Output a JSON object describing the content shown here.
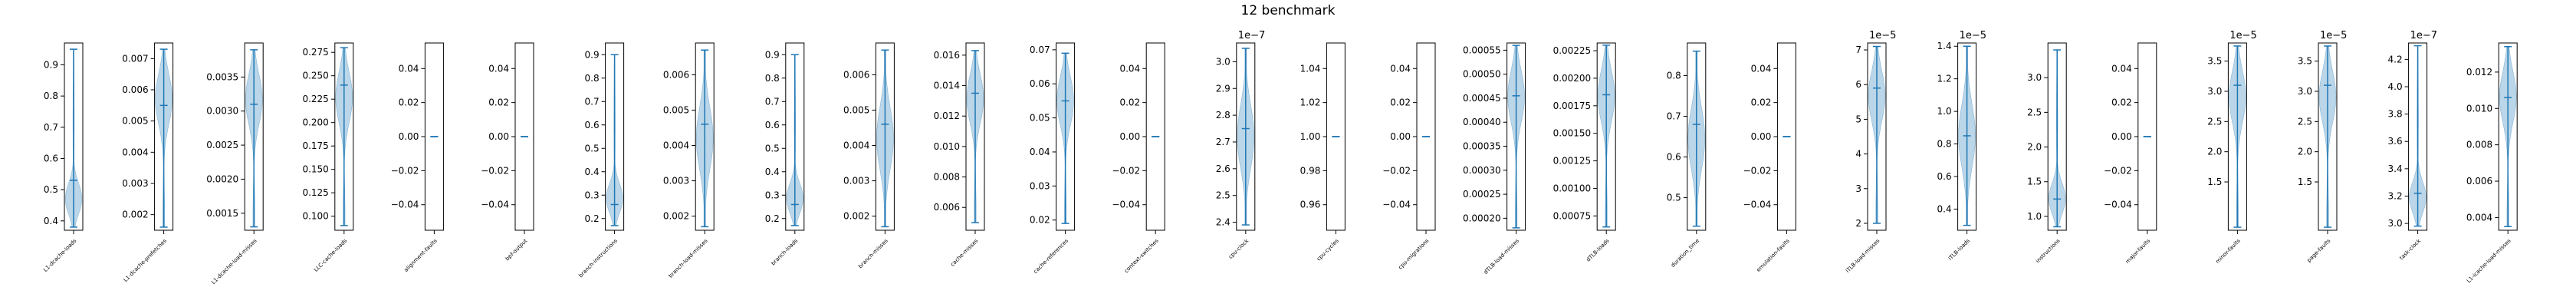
{
  "figure": {
    "title": "12 benchmark"
  },
  "style": {
    "violin_fill": "#1f77b4",
    "line_color": "#1f77b4",
    "frame_color": "#000000"
  },
  "chart_data": [
    {
      "type": "violin",
      "label": "L1-dcache-loads",
      "yticks": [
        "0.4",
        "0.5",
        "0.6",
        "0.7",
        "0.8",
        "0.9"
      ],
      "tick_values": [
        0.4,
        0.5,
        0.6,
        0.7,
        0.8,
        0.9
      ],
      "ylim": [
        0.37,
        0.97
      ],
      "min": 0.38,
      "max": 0.95,
      "median": 0.53,
      "multiplier": "",
      "shape": "bottom"
    },
    {
      "type": "violin",
      "label": "L1-dcache-prefetches",
      "yticks": [
        "0.002",
        "0.003",
        "0.004",
        "0.005",
        "0.006",
        "0.007"
      ],
      "tick_values": [
        0.002,
        0.003,
        0.004,
        0.005,
        0.006,
        0.007
      ],
      "ylim": [
        0.0015,
        0.0075
      ],
      "min": 0.0016,
      "max": 0.0073,
      "median": 0.0055,
      "multiplier": "",
      "shape": "upper"
    },
    {
      "type": "violin",
      "label": "L1-dcache-load-misses",
      "yticks": [
        "0.0015",
        "0.0020",
        "0.0025",
        "0.0030",
        "0.0035"
      ],
      "tick_values": [
        0.0015,
        0.002,
        0.0025,
        0.003,
        0.0035
      ],
      "ylim": [
        0.00125,
        0.004
      ],
      "min": 0.0013,
      "max": 0.0039,
      "median": 0.0031,
      "multiplier": "",
      "shape": "upper"
    },
    {
      "type": "violin",
      "label": "LLC-cache-loads",
      "yticks": [
        "0.100",
        "0.125",
        "0.150",
        "0.175",
        "0.200",
        "0.225",
        "0.250",
        "0.275"
      ],
      "tick_values": [
        0.1,
        0.125,
        0.15,
        0.175,
        0.2,
        0.225,
        0.25,
        0.275
      ],
      "ylim": [
        0.085,
        0.285
      ],
      "min": 0.09,
      "max": 0.28,
      "median": 0.24,
      "multiplier": "",
      "shape": "upper"
    },
    {
      "type": "violin",
      "label": "alignment-faults",
      "yticks": [
        "−0.04",
        "−0.02",
        "0.00",
        "0.02",
        "0.04"
      ],
      "tick_values": [
        -0.04,
        -0.02,
        0,
        0.02,
        0.04
      ],
      "ylim": [
        -0.055,
        0.055
      ],
      "min": 0,
      "max": 0,
      "median": 0,
      "multiplier": "",
      "shape": "flat"
    },
    {
      "type": "violin",
      "label": "bpf-output",
      "yticks": [
        "−0.04",
        "−0.02",
        "0.00",
        "0.02",
        "0.04"
      ],
      "tick_values": [
        -0.04,
        -0.02,
        0,
        0.02,
        0.04
      ],
      "ylim": [
        -0.055,
        0.055
      ],
      "min": 0,
      "max": 0,
      "median": 0,
      "multiplier": "",
      "shape": "flat"
    },
    {
      "type": "violin",
      "label": "branch-instructions",
      "yticks": [
        "0.2",
        "0.3",
        "0.4",
        "0.5",
        "0.6",
        "0.7",
        "0.8",
        "0.9"
      ],
      "tick_values": [
        0.2,
        0.3,
        0.4,
        0.5,
        0.6,
        0.7,
        0.8,
        0.9
      ],
      "ylim": [
        0.15,
        0.95
      ],
      "min": 0.17,
      "max": 0.9,
      "median": 0.26,
      "multiplier": "",
      "shape": "bottom"
    },
    {
      "type": "violin",
      "label": "branch-load-misses",
      "yticks": [
        "0.002",
        "0.003",
        "0.004",
        "0.005",
        "0.006"
      ],
      "tick_values": [
        0.002,
        0.003,
        0.004,
        0.005,
        0.006
      ],
      "ylim": [
        0.0016,
        0.0069
      ],
      "min": 0.0017,
      "max": 0.0067,
      "median": 0.0046,
      "multiplier": "",
      "shape": "middle"
    },
    {
      "type": "violin",
      "label": "branch-loads",
      "yticks": [
        "0.2",
        "0.3",
        "0.4",
        "0.5",
        "0.6",
        "0.7",
        "0.8",
        "0.9"
      ],
      "tick_values": [
        0.2,
        0.3,
        0.4,
        0.5,
        0.6,
        0.7,
        0.8,
        0.9
      ],
      "ylim": [
        0.15,
        0.95
      ],
      "min": 0.17,
      "max": 0.9,
      "median": 0.26,
      "multiplier": "",
      "shape": "bottom"
    },
    {
      "type": "violin",
      "label": "branch-misses",
      "yticks": [
        "0.002",
        "0.003",
        "0.004",
        "0.005",
        "0.006"
      ],
      "tick_values": [
        0.002,
        0.003,
        0.004,
        0.005,
        0.006
      ],
      "ylim": [
        0.0016,
        0.0069
      ],
      "min": 0.0017,
      "max": 0.0067,
      "median": 0.0046,
      "multiplier": "",
      "shape": "middle"
    },
    {
      "type": "violin",
      "label": "cache-misses",
      "yticks": [
        "0.006",
        "0.008",
        "0.010",
        "0.012",
        "0.014",
        "0.016"
      ],
      "tick_values": [
        0.006,
        0.008,
        0.01,
        0.012,
        0.014,
        0.016
      ],
      "ylim": [
        0.0045,
        0.0168
      ],
      "min": 0.005,
      "max": 0.0163,
      "median": 0.0135,
      "multiplier": "",
      "shape": "upper"
    },
    {
      "type": "violin",
      "label": "cache-references",
      "yticks": [
        "0.02",
        "0.03",
        "0.04",
        "0.05",
        "0.06",
        "0.07"
      ],
      "tick_values": [
        0.02,
        0.03,
        0.04,
        0.05,
        0.06,
        0.07
      ],
      "ylim": [
        0.017,
        0.072
      ],
      "min": 0.019,
      "max": 0.069,
      "median": 0.055,
      "multiplier": "",
      "shape": "upper"
    },
    {
      "type": "violin",
      "label": "context-switches",
      "yticks": [
        "−0.04",
        "−0.02",
        "0.00",
        "0.02",
        "0.04"
      ],
      "tick_values": [
        -0.04,
        -0.02,
        0,
        0.02,
        0.04
      ],
      "ylim": [
        -0.055,
        0.055
      ],
      "min": 0,
      "max": 0,
      "median": 0,
      "multiplier": "",
      "shape": "flat"
    },
    {
      "type": "violin",
      "label": "cpu-clock",
      "yticks": [
        "2.4",
        "2.5",
        "2.6",
        "2.7",
        "2.8",
        "2.9",
        "3.0"
      ],
      "tick_values": [
        2.4,
        2.5,
        2.6,
        2.7,
        2.8,
        2.9,
        3.0
      ],
      "ylim": [
        2.37,
        3.07
      ],
      "min": 2.39,
      "max": 3.05,
      "median": 2.75,
      "multiplier": "1e−7",
      "shape": "middle"
    },
    {
      "type": "violin",
      "label": "cpu-cycles",
      "yticks": [
        "0.96",
        "0.98",
        "1.00",
        "1.02",
        "1.04"
      ],
      "tick_values": [
        0.96,
        0.98,
        1.0,
        1.02,
        1.04
      ],
      "ylim": [
        0.945,
        1.055
      ],
      "min": 1.0,
      "max": 1.0,
      "median": 1.0,
      "multiplier": "",
      "shape": "flat"
    },
    {
      "type": "violin",
      "label": "cpu-migrations",
      "yticks": [
        "−0.04",
        "−0.02",
        "0.00",
        "0.02",
        "0.04"
      ],
      "tick_values": [
        -0.04,
        -0.02,
        0,
        0.02,
        0.04
      ],
      "ylim": [
        -0.055,
        0.055
      ],
      "min": 0,
      "max": 0,
      "median": 0,
      "multiplier": "",
      "shape": "flat"
    },
    {
      "type": "violin",
      "label": "dTLB-load-misses",
      "yticks": [
        "0.00020",
        "0.00025",
        "0.00030",
        "0.00035",
        "0.00040",
        "0.00045",
        "0.00050",
        "0.00055"
      ],
      "tick_values": [
        0.0002,
        0.00025,
        0.0003,
        0.00035,
        0.0004,
        0.00045,
        0.0005,
        0.00055
      ],
      "ylim": [
        0.000175,
        0.000565
      ],
      "min": 0.00018,
      "max": 0.00056,
      "median": 0.000455,
      "multiplier": "",
      "shape": "upper"
    },
    {
      "type": "violin",
      "label": "dTLB-loads",
      "yticks": [
        "0.00075",
        "0.00100",
        "0.00125",
        "0.00150",
        "0.00175",
        "0.00200",
        "0.00225"
      ],
      "tick_values": [
        0.00075,
        0.001,
        0.00125,
        0.0015,
        0.00175,
        0.002,
        0.00225
      ],
      "ylim": [
        0.00062,
        0.00232
      ],
      "min": 0.00065,
      "max": 0.0023,
      "median": 0.00185,
      "multiplier": "",
      "shape": "upper"
    },
    {
      "type": "violin",
      "label": "duration_time",
      "yticks": [
        "0.5",
        "0.6",
        "0.7",
        "0.8"
      ],
      "tick_values": [
        0.5,
        0.6,
        0.7,
        0.8
      ],
      "ylim": [
        0.42,
        0.88
      ],
      "min": 0.43,
      "max": 0.86,
      "median": 0.68,
      "multiplier": "",
      "shape": "middle"
    },
    {
      "type": "violin",
      "label": "emulation-faults",
      "yticks": [
        "−0.04",
        "−0.02",
        "0.00",
        "0.02",
        "0.04"
      ],
      "tick_values": [
        -0.04,
        -0.02,
        0,
        0.02,
        0.04
      ],
      "ylim": [
        -0.055,
        0.055
      ],
      "min": 0,
      "max": 0,
      "median": 0,
      "multiplier": "",
      "shape": "flat"
    },
    {
      "type": "violin",
      "label": "iTLB-load-misses",
      "yticks": [
        "2",
        "3",
        "4",
        "5",
        "6",
        "7"
      ],
      "tick_values": [
        2,
        3,
        4,
        5,
        6,
        7
      ],
      "ylim": [
        1.8,
        7.2
      ],
      "min": 2.0,
      "max": 7.1,
      "median": 5.9,
      "multiplier": "1e−5",
      "shape": "upper"
    },
    {
      "type": "violin",
      "label": "iTLB-loads",
      "yticks": [
        "0.4",
        "0.6",
        "0.8",
        "1.0",
        "1.2",
        "1.4"
      ],
      "tick_values": [
        0.4,
        0.6,
        0.8,
        1.0,
        1.2,
        1.4
      ],
      "ylim": [
        0.27,
        1.42
      ],
      "min": 0.3,
      "max": 1.4,
      "median": 0.85,
      "multiplier": "1e−5",
      "shape": "middle"
    },
    {
      "type": "violin",
      "label": "instructions",
      "yticks": [
        "1.0",
        "1.5",
        "2.0",
        "2.5",
        "3.0"
      ],
      "tick_values": [
        1.0,
        1.5,
        2.0,
        2.5,
        3.0
      ],
      "ylim": [
        0.8,
        3.5
      ],
      "min": 0.85,
      "max": 3.4,
      "median": 1.25,
      "multiplier": "",
      "shape": "bottom"
    },
    {
      "type": "violin",
      "label": "major-faults",
      "yticks": [
        "−0.04",
        "−0.02",
        "0.00",
        "0.02",
        "0.04"
      ],
      "tick_values": [
        -0.04,
        -0.02,
        0,
        0.02,
        0.04
      ],
      "ylim": [
        -0.055,
        0.055
      ],
      "min": 0,
      "max": 0,
      "median": 0,
      "multiplier": "",
      "shape": "flat"
    },
    {
      "type": "violin",
      "label": "minor-faults",
      "yticks": [
        "1.5",
        "2.0",
        "2.5",
        "3.0",
        "3.5"
      ],
      "tick_values": [
        1.5,
        2.0,
        2.5,
        3.0,
        3.5
      ],
      "ylim": [
        0.7,
        3.8
      ],
      "min": 0.75,
      "max": 3.75,
      "median": 3.1,
      "multiplier": "1e−5",
      "shape": "upper"
    },
    {
      "type": "violin",
      "label": "page-faults",
      "yticks": [
        "1.5",
        "2.0",
        "2.5",
        "3.0",
        "3.5"
      ],
      "tick_values": [
        1.5,
        2.0,
        2.5,
        3.0,
        3.5
      ],
      "ylim": [
        0.7,
        3.8
      ],
      "min": 0.75,
      "max": 3.75,
      "median": 3.1,
      "multiplier": "1e−5",
      "shape": "upper"
    },
    {
      "type": "violin",
      "label": "task-clock",
      "yticks": [
        "3.0",
        "3.2",
        "3.4",
        "3.6",
        "3.8",
        "4.0",
        "4.2"
      ],
      "tick_values": [
        3.0,
        3.2,
        3.4,
        3.6,
        3.8,
        4.0,
        4.2
      ],
      "ylim": [
        2.95,
        4.32
      ],
      "min": 2.98,
      "max": 4.3,
      "median": 3.22,
      "multiplier": "1e−7",
      "shape": "bottom"
    },
    {
      "type": "violin",
      "label": "L1-icache-load-misses",
      "yticks": [
        "0.004",
        "0.006",
        "0.008",
        "0.010",
        "0.012"
      ],
      "tick_values": [
        0.004,
        0.006,
        0.008,
        0.01,
        0.012
      ],
      "ylim": [
        0.0033,
        0.0136
      ],
      "min": 0.0035,
      "max": 0.0134,
      "median": 0.0106,
      "multiplier": "",
      "shape": "upper"
    }
  ]
}
